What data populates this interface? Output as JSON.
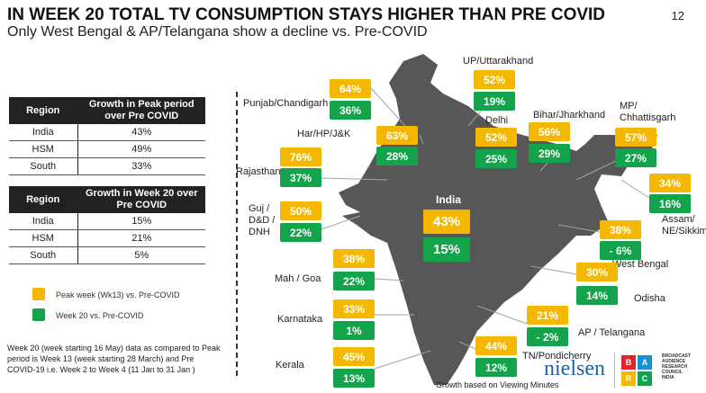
{
  "title": "IN WEEK 20 TOTAL TV CONSUMPTION STAYS HIGHER THAN PRE COVID",
  "subtitle": "Only West Bengal & AP/Telangana show a decline vs. Pre-COVID",
  "page_number": "12",
  "table_peak": {
    "headers": [
      "Region",
      "Growth in Peak period over Pre COVID"
    ],
    "rows": [
      [
        "India",
        "43%"
      ],
      [
        "HSM",
        "49%"
      ],
      [
        "South",
        "33%"
      ]
    ]
  },
  "table_week20": {
    "headers": [
      "Region",
      "Growth in Week 20 over Pre COVID"
    ],
    "rows": [
      [
        "India",
        "15%"
      ],
      [
        "HSM",
        "21%"
      ],
      [
        "South",
        "5%"
      ]
    ]
  },
  "legend": {
    "peak": "Peak week (Wk13) vs. Pre-COVID",
    "week20": "Week 20 vs. Pre-COVID"
  },
  "colors": {
    "peak": "#f5b800",
    "week20": "#13a34a"
  },
  "note": "Week 20 (week starting 16 May) data as compared to Peak period is Week 13 (week starting 28 March) and  Pre COVID-19 i.e. Week 2 to Week 4 (11 Jan to 31 Jan )",
  "regions": [
    {
      "name": "Punjab/Chandigarh",
      "peak": "64%",
      "week20": "36%"
    },
    {
      "name": "UP/Uttarakhand",
      "peak": "52%",
      "week20": "19%"
    },
    {
      "name": "Har/HP/J&K",
      "peak": "63%",
      "week20": "28%"
    },
    {
      "name": "Delhi",
      "peak": "52%",
      "week20": "25%"
    },
    {
      "name": "Bihar/Jharkhand",
      "peak": "56%",
      "week20": "29%"
    },
    {
      "name": "MP/ Chhattisgarh",
      "peak": "57%",
      "week20": "27%"
    },
    {
      "name": "Rajasthan",
      "peak": "76%",
      "week20": "37%"
    },
    {
      "name": "Assam/ NE/Sikkim",
      "peak": "34%",
      "week20": "16%"
    },
    {
      "name": "Guj / D&D / DNH",
      "peak": "50%",
      "week20": "22%"
    },
    {
      "name": "India",
      "peak": "43%",
      "week20": "15%"
    },
    {
      "name": "West Bengal",
      "peak": "38%",
      "week20": "- 6%"
    },
    {
      "name": "Mah / Goa",
      "peak": "38%",
      "week20": "22%"
    },
    {
      "name": "Odisha",
      "peak": "30%",
      "week20": "14%"
    },
    {
      "name": "Karnataka",
      "peak": "33%",
      "week20": "1%"
    },
    {
      "name": "AP / Telangana",
      "peak": "21%",
      "week20": "- 2%"
    },
    {
      "name": "TN/Pondicherry",
      "peak": "44%",
      "week20": "12%"
    },
    {
      "name": "Kerala",
      "peak": "45%",
      "week20": "13%"
    }
  ],
  "footer": "Growth based on Viewing Minutes",
  "logo": {
    "nielsen": "nielsen",
    "barc": [
      "B",
      "A",
      "R",
      "C"
    ],
    "barc_text": "BROADCAST AUDIENCE RESEARCH COUNCIL INDIA"
  }
}
